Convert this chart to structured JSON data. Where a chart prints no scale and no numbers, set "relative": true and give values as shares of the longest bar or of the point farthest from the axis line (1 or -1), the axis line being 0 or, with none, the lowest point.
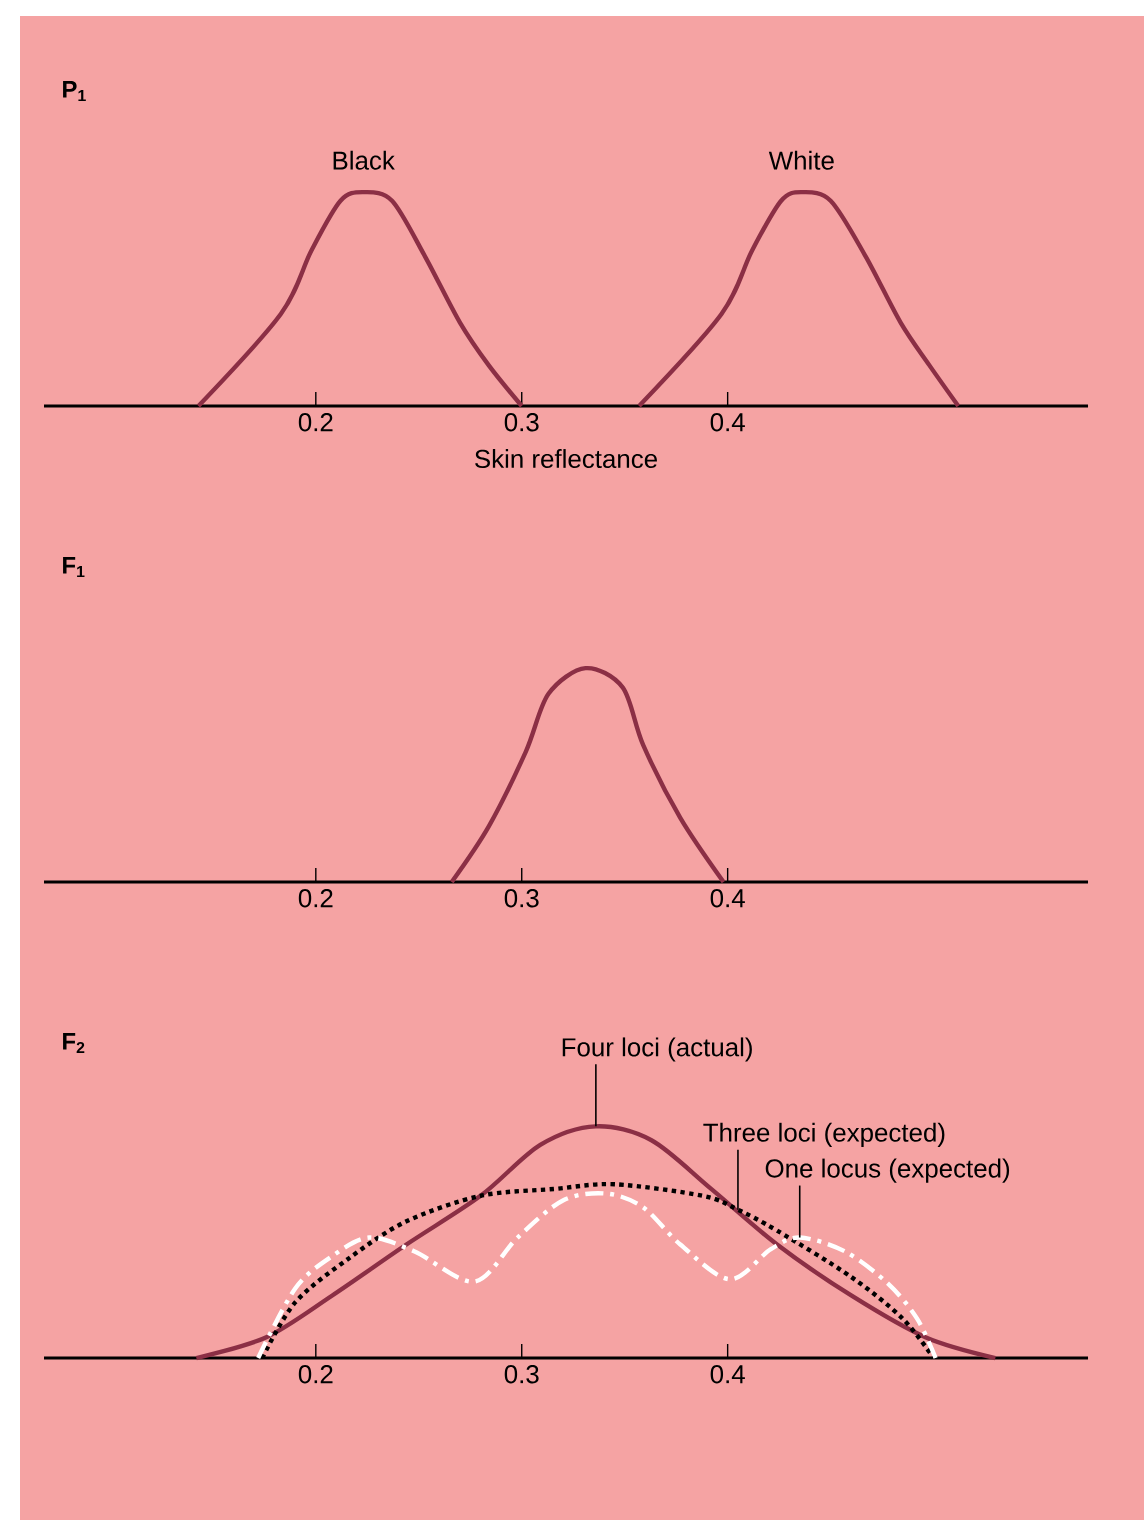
{
  "chart_data": [
    {
      "type": "line",
      "title": "P$_{1}$",
      "xlabel": "Skin reflectance",
      "relative": true,
      "xlim": [
        0.068,
        0.575
      ],
      "xticks": [
        0.2,
        0.3,
        0.4
      ],
      "legend": false,
      "series": [
        {
          "name": "Black",
          "color": "#8b2f45",
          "x": [
            0.143,
            0.183,
            0.198,
            0.212,
            0.223,
            0.237,
            0.253,
            0.27,
            0.284,
            0.3
          ],
          "values": [
            0,
            0.43,
            0.73,
            0.96,
            1,
            0.96,
            0.7,
            0.39,
            0.19,
            0
          ]
        },
        {
          "name": "White",
          "color": "#8b2f45",
          "x": [
            0.357,
            0.397,
            0.412,
            0.426,
            0.436,
            0.45,
            0.467,
            0.484,
            0.498,
            0.512
          ],
          "values": [
            0,
            0.43,
            0.73,
            0.96,
            1,
            0.96,
            0.7,
            0.39,
            0.19,
            0
          ]
        }
      ]
    },
    {
      "type": "line",
      "title": "F$_{1}$",
      "relative": true,
      "xlim": [
        0.068,
        0.575
      ],
      "xticks": [
        0.2,
        0.3,
        0.4
      ],
      "legend": false,
      "series": [
        {
          "color": "#8b2f45",
          "x": [
            0.266,
            0.284,
            0.302,
            0.313,
            0.331,
            0.349,
            0.359,
            0.377,
            0.398
          ],
          "values": [
            0,
            0.26,
            0.61,
            0.88,
            1,
            0.91,
            0.64,
            0.3,
            0
          ]
        }
      ]
    },
    {
      "type": "line",
      "title": "F$_{2}$",
      "relative": true,
      "xlim": [
        0.068,
        0.575
      ],
      "xticks": [
        0.2,
        0.3,
        0.4
      ],
      "legend": false,
      "series": [
        {
          "name": "Four loci (actual)",
          "color": "#8b2f45",
          "line_style": "solid",
          "x": [
            0.142,
            0.176,
            0.208,
            0.244,
            0.28,
            0.309,
            0.336,
            0.363,
            0.392,
            0.424,
            0.46,
            0.496,
            0.53
          ],
          "values": [
            0,
            0.09,
            0.27,
            0.49,
            0.7,
            0.92,
            1,
            0.94,
            0.73,
            0.49,
            0.27,
            0.09,
            0
          ]
        },
        {
          "name": "Three loci (expected)",
          "color": "#000000",
          "line_style": "dotted",
          "x": [
            0.174,
            0.19,
            0.216,
            0.244,
            0.28,
            0.316,
            0.345,
            0.388,
            0.405,
            0.424,
            0.46,
            0.485,
            0.5
          ],
          "values": [
            0,
            0.24,
            0.43,
            0.59,
            0.7,
            0.73,
            0.75,
            0.7,
            0.64,
            0.55,
            0.35,
            0.17,
            0
          ]
        },
        {
          "name": "One locus (expected)",
          "color": "#ffffff",
          "line_style": "dashdot",
          "x": [
            0.172,
            0.19,
            0.208,
            0.226,
            0.248,
            0.277,
            0.298,
            0.32,
            0.341,
            0.359,
            0.377,
            0.401,
            0.421,
            0.435,
            0.457,
            0.478,
            0.492,
            0.501
          ],
          "values": [
            0,
            0.3,
            0.44,
            0.52,
            0.46,
            0.33,
            0.52,
            0.68,
            0.71,
            0.65,
            0.49,
            0.34,
            0.47,
            0.52,
            0.46,
            0.32,
            0.17,
            0
          ]
        }
      ]
    }
  ]
}
